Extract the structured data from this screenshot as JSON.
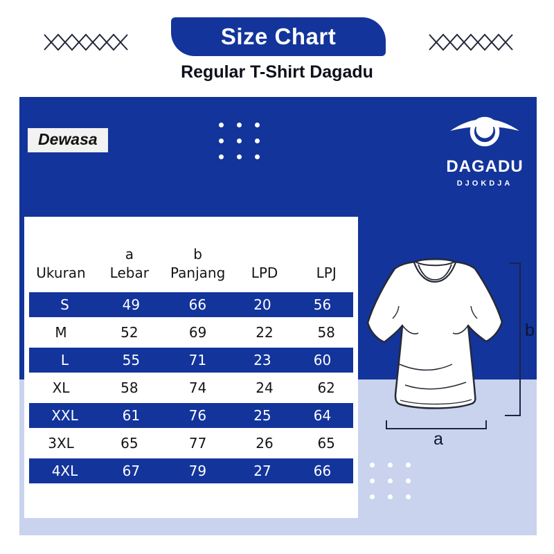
{
  "header": {
    "title": "Size Chart",
    "subtitle": "Regular T-Shirt Dagadu"
  },
  "panel": {
    "category_label": "Dewasa",
    "brand": {
      "name": "DAGADU",
      "sub": "DJOKDJA"
    }
  },
  "table": {
    "headers": {
      "size": "Ukuran",
      "width_letter": "a",
      "width_label": "Lebar",
      "length_letter": "b",
      "length_label": "Panjang",
      "lpd": "LPD",
      "lpj": "LPJ"
    },
    "rows": [
      {
        "size": "S",
        "lebar": "49",
        "panjang": "66",
        "lpd": "20",
        "lpj": "56",
        "highlight": true
      },
      {
        "size": "M",
        "lebar": "52",
        "panjang": "69",
        "lpd": "22",
        "lpj": "58",
        "highlight": false
      },
      {
        "size": "L",
        "lebar": "55",
        "panjang": "71",
        "lpd": "23",
        "lpj": "60",
        "highlight": true
      },
      {
        "size": "XL",
        "lebar": "58",
        "panjang": "74",
        "lpd": "24",
        "lpj": "62",
        "highlight": false
      },
      {
        "size": "XXL",
        "lebar": "61",
        "panjang": "76",
        "lpd": "25",
        "lpj": "64",
        "highlight": true
      },
      {
        "size": "3XL",
        "lebar": "65",
        "panjang": "77",
        "lpd": "26",
        "lpj": "65",
        "highlight": false
      },
      {
        "size": "4XL",
        "lebar": "67",
        "panjang": "79",
        "lpd": "27",
        "lpj": "66",
        "highlight": true
      }
    ]
  },
  "diagram": {
    "width_label": "a",
    "height_label": "b"
  },
  "colors": {
    "primary_blue": "#13349b",
    "lavender": "#c9d3ee",
    "ink": "#10152c"
  }
}
